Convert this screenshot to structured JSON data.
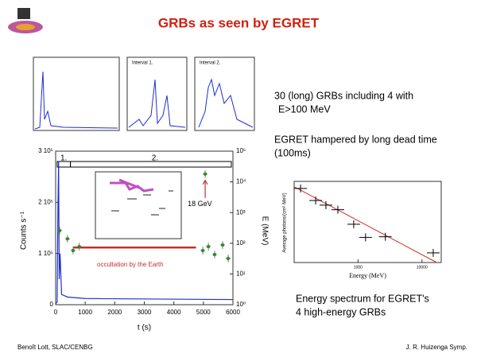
{
  "title": "GRBs  as seen by EGRET",
  "bullets": [
    "30 (long) GRBs including  4 with",
    "E>100 MeV",
    "EGRET hampered by long  dead time",
    "(100ms)"
  ],
  "caption": [
    "Energy spectrum for EGRET's",
    "4 high-energy GRBs"
  ],
  "footer": {
    "left": "Benoît Lott, SLAC/CENBG",
    "right": "J. R. Huizenga Symp."
  },
  "top_panels": {
    "interval1": "Interval 1.",
    "interval2": "Interval 2."
  },
  "main_plot": {
    "xlabel": "t (s)",
    "ylabel": "Counts s⁻¹",
    "y2label": "E (MeV)",
    "xlim": [
      0,
      6000
    ],
    "xticks": [
      0,
      1000,
      2000,
      3000,
      4000,
      5000,
      6000
    ],
    "ylim": [
      0,
      300000
    ],
    "yticks": [
      {
        "value": 0,
        "label": "0"
      },
      {
        "value": 100000,
        "label": "1 10⁵"
      },
      {
        "value": 200000,
        "label": "2 10⁵"
      },
      {
        "value": 300000,
        "label": "3 10⁵"
      }
    ],
    "y2lim": [
      1,
      100000
    ],
    "y2ticks": [
      {
        "value": 1,
        "label": "10⁰"
      },
      {
        "value": 10,
        "label": "10¹"
      },
      {
        "value": 100,
        "label": "10²"
      },
      {
        "value": 1000,
        "label": "10³"
      },
      {
        "value": 10000,
        "label": "10⁴"
      },
      {
        "value": 100000,
        "label": "10⁵"
      }
    ],
    "intervals": [
      "1.",
      "2."
    ],
    "light_curve": {
      "color": "#1f2fd0",
      "t": [
        0,
        50,
        80,
        100,
        120,
        150,
        200,
        400,
        1000,
        6000
      ],
      "counts": [
        2000,
        5000,
        200000,
        280000,
        50000,
        100000,
        20000,
        15000,
        12000,
        10000
      ]
    },
    "photons": {
      "color": "#2e8b2e",
      "t": [
        135,
        400,
        590,
        800,
        4980,
        5060,
        5170,
        5380,
        5650,
        5840
      ],
      "E": [
        260,
        140,
        58,
        78,
        58,
        18000,
        78,
        43,
        88,
        32
      ]
    },
    "highlight": "18 GeV",
    "occultation": {
      "t": [
        600,
        4750
      ],
      "E": 73,
      "label": "occultation by the Earth",
      "color": "#c0302a"
    }
  },
  "spectrum": {
    "xlabel": "Energy (MeV)",
    "ylabel": "Average photons/(cm²·MeV)",
    "xlim": [
      100,
      20000
    ],
    "ylim": [
      1e-09,
      0.1
    ],
    "xticks": [
      1000,
      10000
    ],
    "E": [
      126,
      217,
      314,
      483,
      855,
      1310,
      2670,
      15000
    ],
    "flux": [
      0.02,
      0.0013,
      0.00045,
      0.00016,
      6e-06,
      3e-07,
      3.5e-07,
      9e-09
    ],
    "fit": {
      "E": [
        100,
        17000
      ],
      "flux": [
        0.03,
        1e-09
      ],
      "color": "#d03020"
    }
  }
}
